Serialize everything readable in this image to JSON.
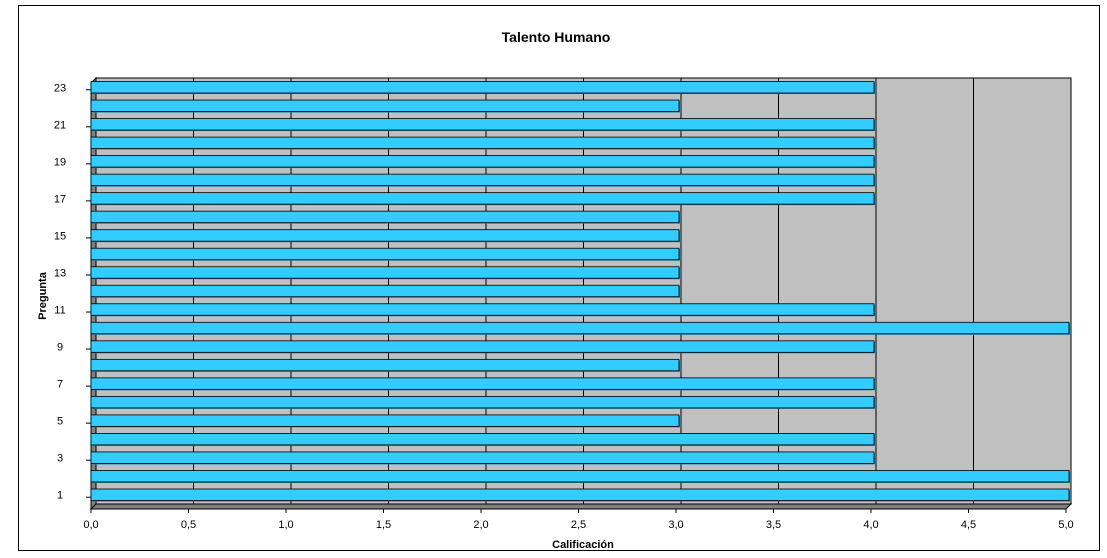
{
  "chart_data": {
    "type": "bar",
    "orientation": "horizontal",
    "title": "Talento Humano",
    "xlabel": "Calificación",
    "ylabel": "Pregunta",
    "xlim": [
      0,
      5
    ],
    "x_ticks": [
      "0,0",
      "0,5",
      "1,0",
      "1,5",
      "2,0",
      "2,5",
      "3,0",
      "3,5",
      "4,0",
      "4,5",
      "5,0"
    ],
    "y_tick_labels": [
      "1",
      "3",
      "5",
      "7",
      "9",
      "11",
      "13",
      "15",
      "17",
      "19",
      "21",
      "23"
    ],
    "categories": [
      1,
      2,
      3,
      4,
      5,
      6,
      7,
      8,
      9,
      10,
      11,
      12,
      13,
      14,
      15,
      16,
      17,
      18,
      19,
      20,
      21,
      22,
      23
    ],
    "values": [
      5,
      5,
      4,
      4,
      3,
      4,
      4,
      3,
      4,
      5,
      4,
      3,
      3,
      3,
      3,
      3,
      4,
      4,
      4,
      4,
      4,
      3,
      4
    ],
    "grid": true,
    "colors": {
      "bar_fill": "#33ccff",
      "bar_shadow": "#1f7fa8",
      "plot_bg": "#c0c0c0",
      "grid": "#000000"
    }
  }
}
